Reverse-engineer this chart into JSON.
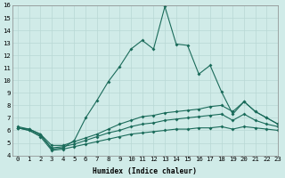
{
  "xlabel": "Humidex (Indice chaleur)",
  "ylabel": "",
  "bg_color": "#d0ebe8",
  "grid_color": "#b8d8d4",
  "line_color": "#1a6b5a",
  "xlim": [
    -0.5,
    23
  ],
  "ylim": [
    4,
    16
  ],
  "xticks": [
    0,
    1,
    2,
    3,
    4,
    5,
    6,
    7,
    8,
    9,
    10,
    11,
    12,
    13,
    14,
    15,
    16,
    17,
    18,
    19,
    20,
    21,
    22,
    23
  ],
  "yticks": [
    4,
    5,
    6,
    7,
    8,
    9,
    10,
    11,
    12,
    13,
    14,
    15,
    16
  ],
  "line1_x": [
    0,
    1,
    2,
    3,
    4,
    5,
    6,
    7,
    8,
    9,
    10,
    11,
    12,
    13,
    14,
    15,
    16,
    17,
    18,
    19,
    20,
    21,
    22,
    23
  ],
  "line1_y": [
    6.3,
    6.1,
    5.7,
    4.5,
    4.6,
    5.2,
    7.0,
    8.4,
    9.9,
    11.1,
    12.5,
    13.2,
    12.5,
    15.9,
    12.9,
    12.8,
    10.5,
    11.2,
    9.1,
    7.3,
    8.3,
    7.5,
    7.0,
    6.5
  ],
  "line2_x": [
    0,
    1,
    2,
    3,
    4,
    5,
    6,
    7,
    8,
    9,
    10,
    11,
    12,
    13,
    14,
    15,
    16,
    17,
    18,
    19,
    20,
    21,
    22,
    23
  ],
  "line2_y": [
    6.2,
    6.1,
    5.7,
    4.8,
    4.8,
    5.1,
    5.4,
    5.7,
    6.1,
    6.5,
    6.8,
    7.1,
    7.2,
    7.4,
    7.5,
    7.6,
    7.7,
    7.9,
    8.0,
    7.5,
    8.3,
    7.5,
    7.0,
    6.5
  ],
  "line3_x": [
    0,
    1,
    2,
    3,
    4,
    5,
    6,
    7,
    8,
    9,
    10,
    11,
    12,
    13,
    14,
    15,
    16,
    17,
    18,
    19,
    20,
    21,
    22,
    23
  ],
  "line3_y": [
    6.2,
    6.0,
    5.6,
    4.6,
    4.7,
    4.9,
    5.2,
    5.5,
    5.8,
    6.0,
    6.3,
    6.5,
    6.6,
    6.8,
    6.9,
    7.0,
    7.1,
    7.2,
    7.3,
    6.8,
    7.3,
    6.8,
    6.5,
    6.3
  ],
  "line4_x": [
    0,
    1,
    2,
    3,
    4,
    5,
    6,
    7,
    8,
    9,
    10,
    11,
    12,
    13,
    14,
    15,
    16,
    17,
    18,
    19,
    20,
    21,
    22,
    23
  ],
  "line4_y": [
    6.2,
    6.0,
    5.5,
    4.4,
    4.5,
    4.7,
    4.9,
    5.1,
    5.3,
    5.5,
    5.7,
    5.8,
    5.9,
    6.0,
    6.1,
    6.1,
    6.2,
    6.2,
    6.3,
    6.1,
    6.3,
    6.2,
    6.1,
    6.0
  ]
}
